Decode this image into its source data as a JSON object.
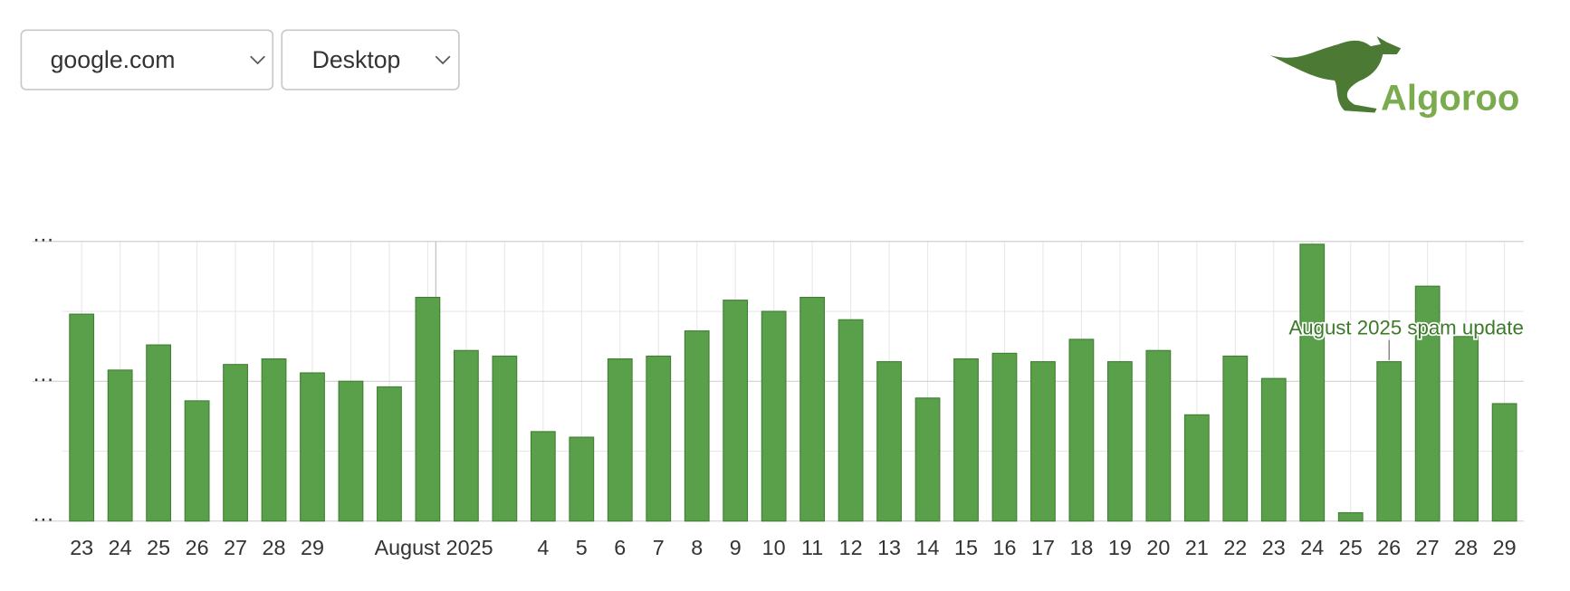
{
  "controls": {
    "site": "google.com",
    "device": "Desktop"
  },
  "logo": "Algoroo",
  "chart_data": {
    "type": "bar",
    "categories": [
      "23",
      "24",
      "25",
      "26",
      "27",
      "28",
      "29",
      null,
      null,
      "August 2025",
      null,
      null,
      "4",
      "5",
      "6",
      "7",
      "8",
      "9",
      "10",
      "11",
      "12",
      "13",
      "14",
      "15",
      "16",
      "17",
      "18",
      "19",
      "20",
      "21",
      "22",
      "23",
      "24",
      "25",
      "26",
      "27",
      "28",
      "29"
    ],
    "values": [
      74,
      54,
      63,
      43,
      56,
      58,
      53,
      50,
      48,
      80,
      61,
      59,
      32,
      30,
      58,
      59,
      68,
      79,
      75,
      80,
      72,
      57,
      44,
      58,
      60,
      57,
      65,
      57,
      61,
      38,
      59,
      51,
      99,
      3,
      57,
      84,
      66,
      42
    ],
    "color": "#5aa04a",
    "ylim": [
      0,
      100
    ],
    "yticks": [
      {
        "value": 0,
        "label": "…"
      },
      {
        "value": 50,
        "label": "…"
      },
      {
        "value": 100,
        "label": "…"
      }
    ],
    "minor_yticks": [
      25,
      75
    ],
    "grid": true,
    "annotations": [
      {
        "index": 34,
        "text": "August 2025 spam update"
      }
    ]
  }
}
